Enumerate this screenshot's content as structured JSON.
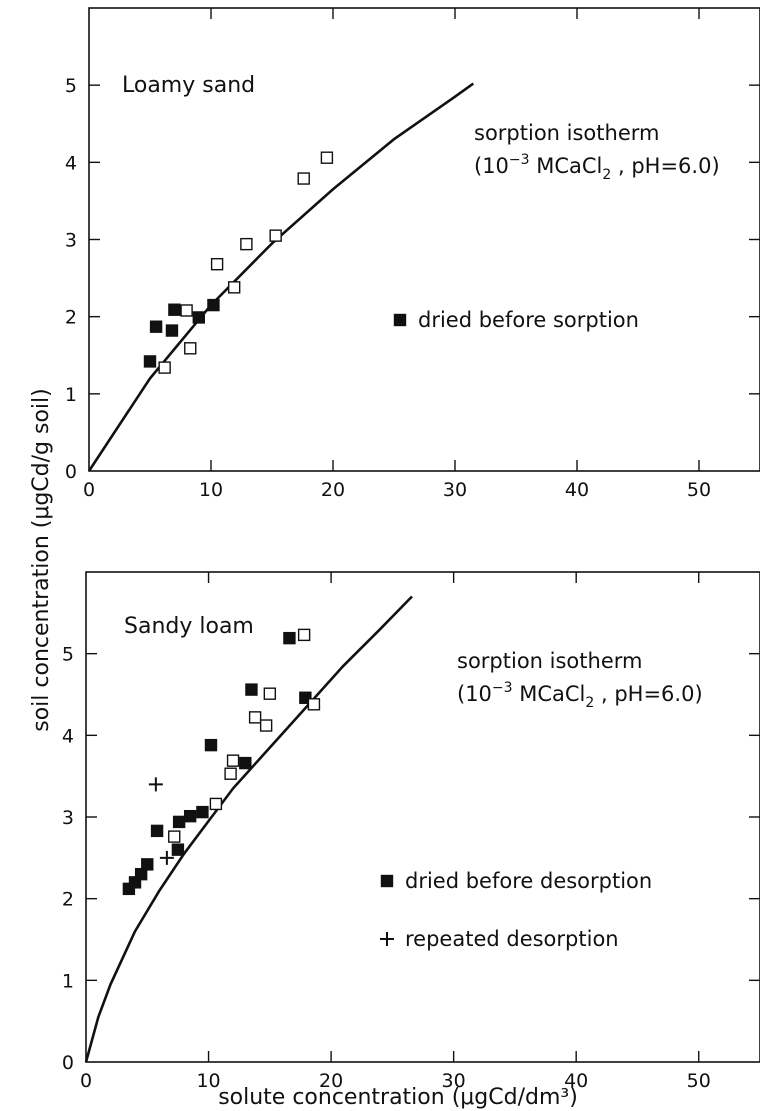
{
  "chart_data": {
    "shared": {
      "xlabel": "solute concentration (μgCd/dm³)",
      "ylabel": "soil concentration (μgCd/g soil)"
    },
    "panels": [
      {
        "type": "scatter",
        "title": "Loamy sand",
        "xlim": [
          0,
          55
        ],
        "ylim": [
          0,
          6
        ],
        "x_ticks": [
          0,
          10,
          20,
          30,
          40,
          50
        ],
        "y_ticks": [
          0,
          1,
          2,
          3,
          4,
          5
        ],
        "isotherm_label": {
          "line1": "sorption isotherm",
          "line2_prefix": "(10",
          "exponent": "−3",
          "line2_suffix": " MCaCl",
          "subscript": "2",
          "line2_end": " , pH=6.0)"
        },
        "isotherm": [
          [
            0,
            0
          ],
          [
            5,
            1.2
          ],
          [
            10,
            2.15
          ],
          [
            15,
            2.95
          ],
          [
            20,
            3.65
          ],
          [
            25,
            4.3
          ],
          [
            30,
            4.85
          ],
          [
            31.5,
            5.02
          ]
        ],
        "series": [
          {
            "marker": "filled-square",
            "points": [
              [
                5,
                1.42
              ],
              [
                5.5,
                1.87
              ],
              [
                6.8,
                1.82
              ],
              [
                7,
                2.09
              ],
              [
                9,
                1.99
              ],
              [
                10.2,
                2.15
              ]
            ]
          },
          {
            "marker": "open-square",
            "points": [
              [
                6.2,
                1.34
              ],
              [
                8,
                2.08
              ],
              [
                8.3,
                1.59
              ],
              [
                10.5,
                2.68
              ],
              [
                11.9,
                2.38
              ],
              [
                12.9,
                2.94
              ],
              [
                15.3,
                3.05
              ],
              [
                17.6,
                3.79
              ],
              [
                19.5,
                4.06
              ]
            ]
          }
        ],
        "legend": [
          {
            "marker": "filled-square",
            "label": "dried before sorption"
          }
        ]
      },
      {
        "type": "scatter",
        "title": "Sandy loam",
        "xlim": [
          0,
          55
        ],
        "ylim": [
          0,
          6
        ],
        "x_ticks": [
          0,
          10,
          20,
          30,
          40,
          50
        ],
        "y_ticks": [
          0,
          1,
          2,
          3,
          4,
          5
        ],
        "isotherm_label": {
          "line1": "sorption isotherm",
          "line2_prefix": "(10",
          "exponent": "−3",
          "line2_suffix": " MCaCl",
          "subscript": "2",
          "line2_end": " , pH=6.0)"
        },
        "isotherm": [
          [
            0,
            0
          ],
          [
            1,
            0.55
          ],
          [
            2,
            0.95
          ],
          [
            4,
            1.6
          ],
          [
            6,
            2.1
          ],
          [
            8,
            2.55
          ],
          [
            10,
            2.95
          ],
          [
            12,
            3.35
          ],
          [
            15,
            3.85
          ],
          [
            18,
            4.35
          ],
          [
            21,
            4.85
          ],
          [
            24,
            5.3
          ],
          [
            26.6,
            5.7
          ]
        ],
        "series": [
          {
            "marker": "filled-square",
            "points": [
              [
                3.5,
                2.12
              ],
              [
                4,
                2.2
              ],
              [
                4.5,
                2.3
              ],
              [
                5,
                2.42
              ],
              [
                5.8,
                2.83
              ],
              [
                7.5,
                2.6
              ],
              [
                7.6,
                2.94
              ],
              [
                8.5,
                3.01
              ],
              [
                9.5,
                3.06
              ],
              [
                10.2,
                3.88
              ],
              [
                13,
                3.66
              ],
              [
                13.5,
                4.56
              ],
              [
                16.6,
                5.19
              ],
              [
                17.9,
                4.46
              ]
            ]
          },
          {
            "marker": "open-square",
            "points": [
              [
                7.2,
                2.76
              ],
              [
                10.6,
                3.16
              ],
              [
                11.8,
                3.53
              ],
              [
                12,
                3.69
              ],
              [
                13.8,
                4.22
              ],
              [
                14.7,
                4.12
              ],
              [
                15,
                4.51
              ],
              [
                17.8,
                5.23
              ],
              [
                18.6,
                4.38
              ]
            ]
          },
          {
            "marker": "plus",
            "points": [
              [
                5.7,
                3.4
              ],
              [
                6.6,
                2.5
              ]
            ]
          }
        ],
        "legend": [
          {
            "marker": "filled-square",
            "label": "dried before desorption"
          },
          {
            "marker": "plus",
            "label": "repeated desorption"
          }
        ]
      }
    ]
  }
}
